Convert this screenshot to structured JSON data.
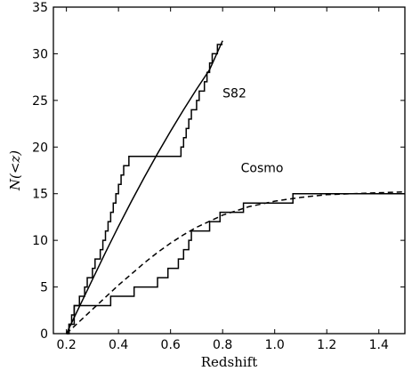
{
  "chart_data": {
    "type": "line",
    "xlabel": "Redshift",
    "ylabel": "N(<z)",
    "xlim": [
      0.15,
      1.5
    ],
    "ylim": [
      0,
      35
    ],
    "xticks": [
      0.2,
      0.4,
      0.6,
      0.8,
      1.0,
      1.2,
      1.4
    ],
    "xtick_labels": [
      "0.2",
      "0.4",
      "0.6",
      "0.8",
      "1.0",
      "1.2",
      "1.4"
    ],
    "yticks": [
      0,
      5,
      10,
      15,
      20,
      25,
      30,
      35
    ],
    "ytick_labels": [
      "0",
      "5",
      "10",
      "15",
      "20",
      "25",
      "30",
      "35"
    ],
    "grid": false,
    "annotations": [
      {
        "text": "S82",
        "x": 0.8,
        "y": 25.3
      },
      {
        "text": "Cosmo",
        "x": 0.87,
        "y": 17.3
      }
    ],
    "series": [
      {
        "style": "step",
        "x": [
          0.2,
          0.21,
          0.22,
          0.23,
          0.25,
          0.27,
          0.28,
          0.3,
          0.31,
          0.33,
          0.34,
          0.35,
          0.36,
          0.37,
          0.38,
          0.39,
          0.4,
          0.41,
          0.42,
          0.44,
          0.45,
          0.47,
          0.48,
          0.49,
          0.51,
          0.53,
          0.55,
          0.58,
          0.61,
          0.63,
          0.64,
          0.65,
          0.66,
          0.67,
          0.68,
          0.7,
          0.71,
          0.73,
          0.74,
          0.75,
          0.76,
          0.78,
          0.8
        ],
        "y": [
          0,
          1,
          2,
          3,
          4,
          5,
          6,
          7,
          8,
          9,
          10,
          11,
          12,
          13,
          14,
          15,
          16,
          17,
          18,
          19,
          19,
          19,
          19,
          19,
          19,
          19,
          19,
          19,
          19,
          19,
          20,
          21,
          22,
          23,
          24,
          25,
          26,
          27,
          28,
          29,
          30,
          31,
          31
        ]
      },
      {
        "style": "solid",
        "x": [
          0.2,
          0.25,
          0.3,
          0.35,
          0.4,
          0.45,
          0.5,
          0.55,
          0.6,
          0.65,
          0.7,
          0.75,
          0.8
        ],
        "y": [
          0,
          2.9,
          5.8,
          8.7,
          11.5,
          14.2,
          16.8,
          19.3,
          21.7,
          24.0,
          26.2,
          28.3,
          31.4
        ]
      },
      {
        "style": "step",
        "x": [
          0.2,
          0.21,
          0.23,
          0.29,
          0.37,
          0.46,
          0.49,
          0.55,
          0.59,
          0.63,
          0.65,
          0.67,
          0.68,
          0.75,
          0.79,
          0.85,
          0.88,
          1.07,
          1.5
        ],
        "y": [
          0,
          1,
          3,
          3,
          4,
          5,
          5,
          6,
          7,
          8,
          9,
          10,
          11,
          12,
          13,
          13,
          14,
          15,
          15
        ]
      },
      {
        "style": "dashed",
        "x": [
          0.2,
          0.25,
          0.3,
          0.35,
          0.4,
          0.45,
          0.5,
          0.55,
          0.6,
          0.65,
          0.7,
          0.8,
          0.9,
          1.0,
          1.1,
          1.2,
          1.3,
          1.4,
          1.5
        ],
        "y": [
          0,
          1.3,
          2.6,
          3.9,
          5.2,
          6.4,
          7.6,
          8.7,
          9.7,
          10.6,
          11.4,
          12.7,
          13.6,
          14.2,
          14.6,
          14.9,
          15.0,
          15.1,
          15.2
        ]
      }
    ]
  }
}
